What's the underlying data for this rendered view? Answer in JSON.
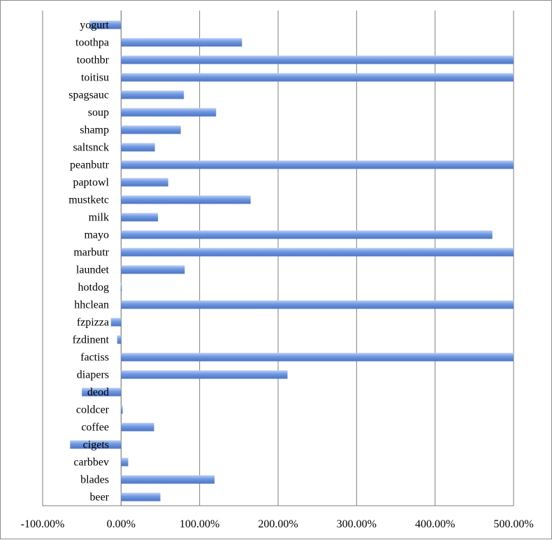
{
  "chart_data": {
    "type": "bar",
    "orientation": "horizontal",
    "categories": [
      "beer",
      "blades",
      "carbbev",
      "cigets",
      "coffee",
      "coldcer",
      "deod",
      "diapers",
      "factiss",
      "fzdinent",
      "fzpizza",
      "hhclean",
      "hotdog",
      "laundet",
      "marbutr",
      "mayo",
      "milk",
      "mustketc",
      "paptowl",
      "peanbutr",
      "saltsnck",
      "shamp",
      "soup",
      "spagsauc",
      "toitisu",
      "toothbr",
      "toothpa",
      "yogurt"
    ],
    "values": [
      0.5,
      1.19,
      0.09,
      -0.65,
      0.42,
      0.02,
      -0.5,
      2.12,
      5.0,
      -0.05,
      -0.13,
      5.0,
      0.0,
      0.81,
      5.0,
      4.73,
      0.47,
      1.65,
      0.6,
      5.0,
      0.43,
      0.76,
      1.21,
      0.8,
      5.0,
      5.0,
      1.54,
      -0.4
    ],
    "xlim": [
      -1.0,
      5.0
    ],
    "x_ticks": [
      "-100.00%",
      "0.00%",
      "100.00%",
      "200.00%",
      "300.00%",
      "400.00%",
      "500.00%"
    ],
    "grid": true,
    "colors": {
      "bar": "#6d97e0",
      "bar_highlight": "#b9cdf3",
      "bar_shadow": "#4d75c4",
      "grid": "#7f7f7f"
    }
  }
}
